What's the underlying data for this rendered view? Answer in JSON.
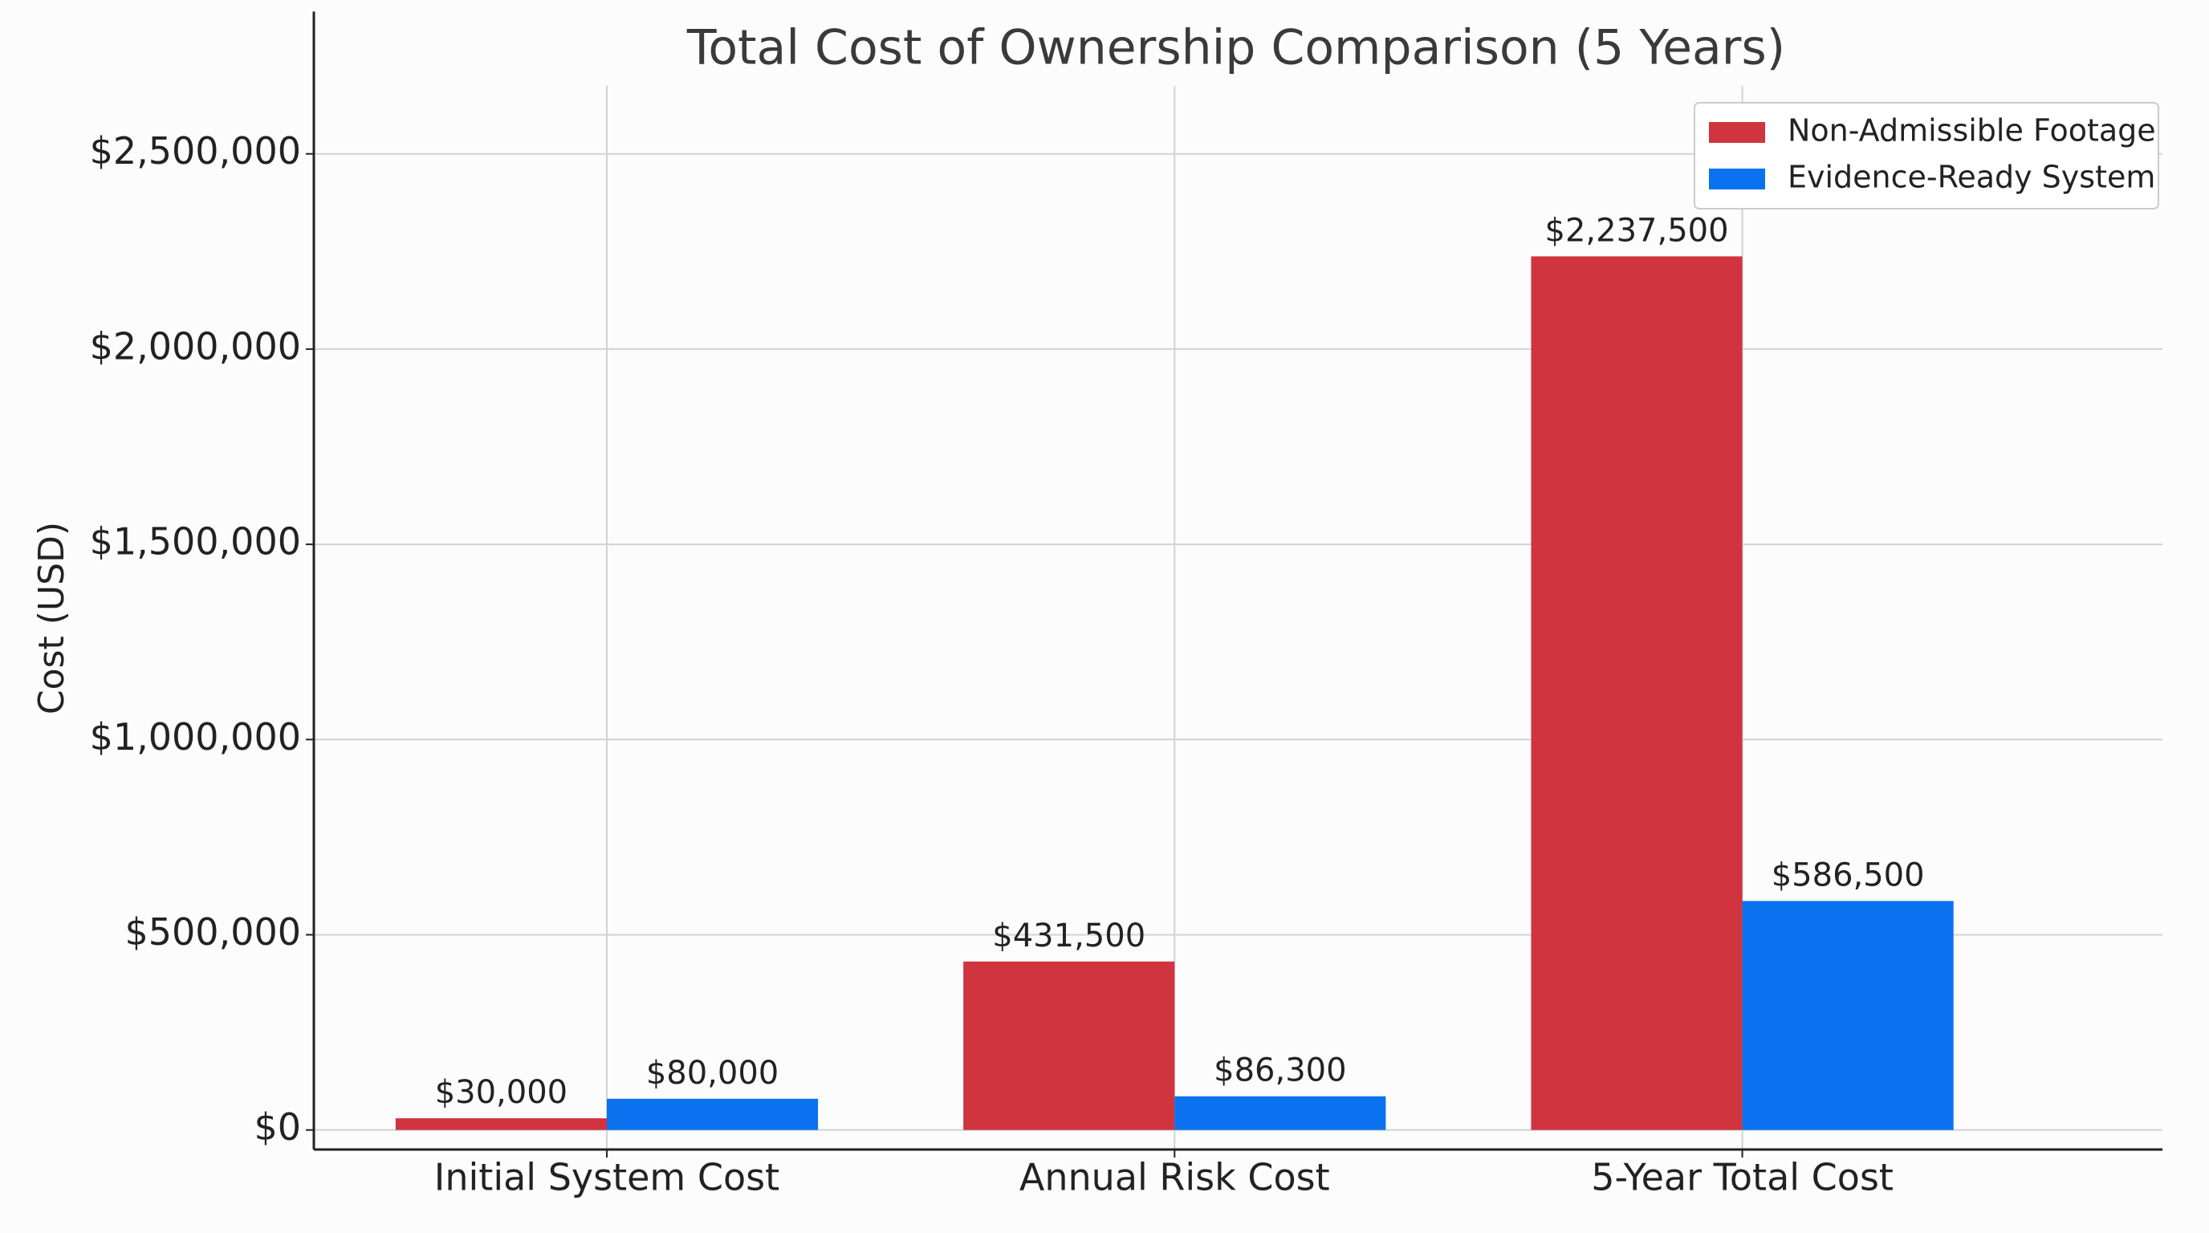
{
  "chart_data": {
    "type": "bar",
    "title": "Total Cost of Ownership Comparison (5 Years)",
    "y_label": "Cost (USD)",
    "categories": [
      "Initial System Cost",
      "Annual Risk Cost",
      "5-Year Total Cost"
    ],
    "series": [
      {
        "name": "Non-Admissible Footage",
        "color": "#d0343f",
        "values": [
          30000,
          431500,
          2237500
        ],
        "value_labels": [
          "$30,000",
          "$431,500",
          "$2,237,500"
        ]
      },
      {
        "name": "Evidence-Ready System",
        "color": "#0a72ef",
        "values": [
          80000,
          86300,
          586500
        ],
        "value_labels": [
          "$80,000",
          "$86,300",
          "$586,500"
        ]
      }
    ],
    "ylim": [
      -50000,
      2670000
    ],
    "yticks": [
      {
        "value": 0,
        "label": "$0"
      },
      {
        "value": 500000,
        "label": "$500,000"
      },
      {
        "value": 1000000,
        "label": "$1,000,000"
      },
      {
        "value": 1500000,
        "label": "$1,500,000"
      },
      {
        "value": 2000000,
        "label": "$2,000,000"
      },
      {
        "value": 2500000,
        "label": "$2,500,000"
      }
    ],
    "grid": true,
    "legend": "upper right"
  }
}
